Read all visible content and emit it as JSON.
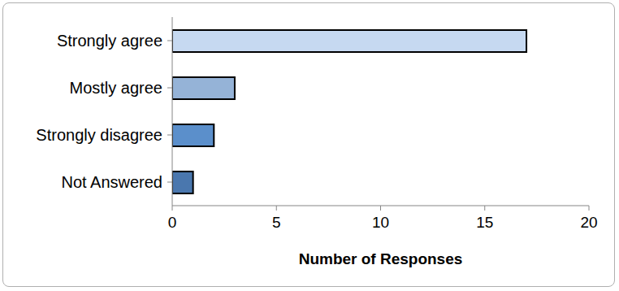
{
  "chart_data": {
    "type": "bar",
    "orientation": "horizontal",
    "categories": [
      "Strongly agree",
      "Mostly agree",
      "Strongly disagree",
      "Not Answered"
    ],
    "values": [
      17,
      3,
      2,
      1
    ],
    "colors": [
      "#c6d9f1",
      "#95b3d7",
      "#5b8fcb",
      "#4a77ae"
    ],
    "xlim": [
      0,
      20
    ],
    "xticks": [
      0,
      5,
      10,
      15,
      20
    ],
    "xlabel": "Number of Responses",
    "grid": false
  }
}
